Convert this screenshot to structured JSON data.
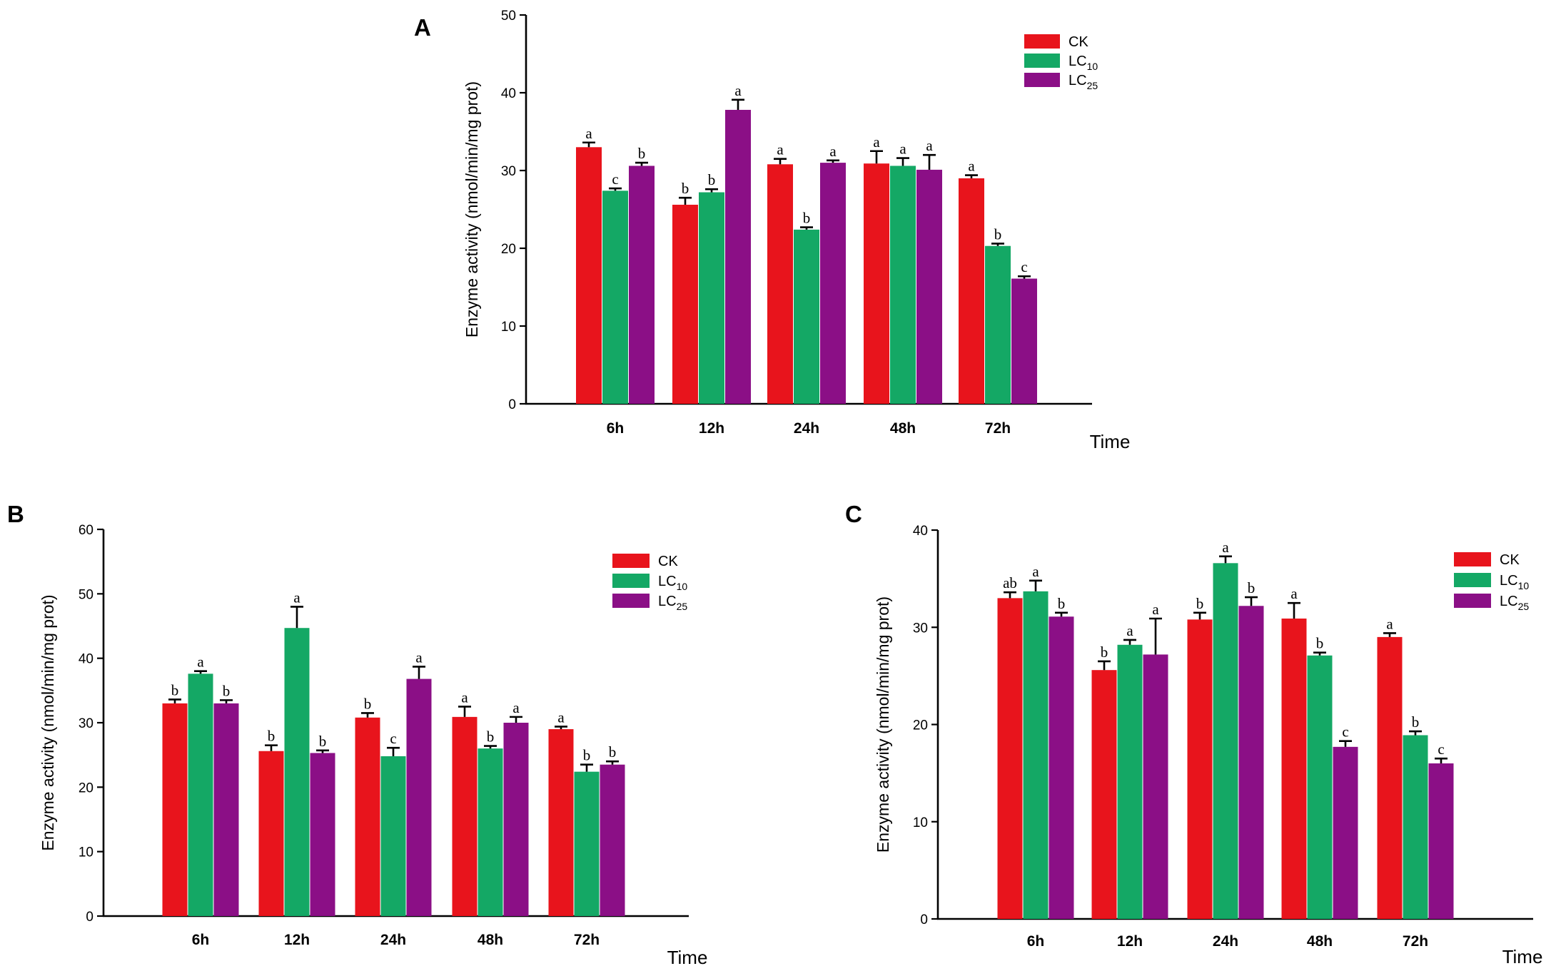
{
  "chart_data": [
    {
      "panel": "A",
      "type": "bar",
      "categories": [
        "6h",
        "12h",
        "24h",
        "48h",
        "72h"
      ],
      "xlabel": "Time",
      "ylabel": "Enzyme activity (nmol/min/mg prot)",
      "ylim": [
        0,
        50
      ],
      "yticks": [
        0,
        10,
        20,
        30,
        40,
        50
      ],
      "legend_position": "top-right",
      "series": [
        {
          "name": "CK",
          "sub": "",
          "color": "#e8141c",
          "values": [
            33.0,
            25.6,
            30.8,
            30.9,
            29.0
          ],
          "errors": [
            0.6,
            0.9,
            0.7,
            1.6,
            0.4
          ],
          "letters": [
            "a",
            "b",
            "a",
            "a",
            "a"
          ]
        },
        {
          "name": "LC",
          "sub": "10",
          "color": "#14a865",
          "values": [
            27.4,
            27.2,
            22.4,
            30.6,
            20.3
          ],
          "errors": [
            0.3,
            0.4,
            0.3,
            1.0,
            0.3
          ],
          "letters": [
            "c",
            "b",
            "b",
            "a",
            "b"
          ]
        },
        {
          "name": "LC",
          "sub": "25",
          "color": "#8b0f86",
          "values": [
            30.6,
            37.8,
            31.0,
            30.1,
            16.1
          ],
          "errors": [
            0.4,
            1.3,
            0.3,
            1.9,
            0.3
          ],
          "letters": [
            "b",
            "a",
            "a",
            "a",
            "c"
          ]
        }
      ]
    },
    {
      "panel": "B",
      "type": "bar",
      "categories": [
        "6h",
        "12h",
        "24h",
        "48h",
        "72h"
      ],
      "xlabel": "Time",
      "ylabel": "Enzyme activity (nmol/min/mg prot)",
      "ylim": [
        0,
        60
      ],
      "yticks": [
        0,
        10,
        20,
        30,
        40,
        50,
        60
      ],
      "legend_position": "top-right",
      "series": [
        {
          "name": "CK",
          "sub": "",
          "color": "#e8141c",
          "values": [
            33.0,
            25.6,
            30.8,
            30.9,
            29.0
          ],
          "errors": [
            0.6,
            0.9,
            0.7,
            1.6,
            0.4
          ],
          "letters": [
            "b",
            "b",
            "b",
            "a",
            "a"
          ]
        },
        {
          "name": "LC",
          "sub": "10",
          "color": "#14a865",
          "values": [
            37.6,
            44.7,
            24.8,
            26.0,
            22.4
          ],
          "errors": [
            0.4,
            3.3,
            1.3,
            0.4,
            1.1
          ],
          "letters": [
            "a",
            "a",
            "c",
            "b",
            "b"
          ]
        },
        {
          "name": "LC",
          "sub": "25",
          "color": "#8b0f86",
          "values": [
            33.0,
            25.3,
            36.8,
            30.0,
            23.5
          ],
          "errors": [
            0.5,
            0.4,
            1.9,
            0.9,
            0.5
          ],
          "letters": [
            "b",
            "b",
            "a",
            "a",
            "b"
          ]
        }
      ]
    },
    {
      "panel": "C",
      "type": "bar",
      "categories": [
        "6h",
        "12h",
        "24h",
        "48h",
        "72h"
      ],
      "xlabel": "Time",
      "ylabel": "Enzyme activity (nmol/min/mg prot)",
      "ylim": [
        0,
        40
      ],
      "yticks": [
        0,
        10,
        20,
        30,
        40
      ],
      "legend_position": "top-right",
      "series": [
        {
          "name": "CK",
          "sub": "",
          "color": "#e8141c",
          "values": [
            33.0,
            25.6,
            30.8,
            30.9,
            29.0
          ],
          "errors": [
            0.6,
            0.9,
            0.7,
            1.6,
            0.4
          ],
          "letters": [
            "ab",
            "b",
            "b",
            "a",
            "a"
          ]
        },
        {
          "name": "LC",
          "sub": "10",
          "color": "#14a865",
          "values": [
            33.7,
            28.2,
            36.6,
            27.1,
            18.9
          ],
          "errors": [
            1.1,
            0.5,
            0.7,
            0.3,
            0.4
          ],
          "letters": [
            "a",
            "a",
            "a",
            "b",
            "b"
          ]
        },
        {
          "name": "LC",
          "sub": "25",
          "color": "#8b0f86",
          "values": [
            31.1,
            27.2,
            32.2,
            17.7,
            16.0
          ],
          "errors": [
            0.4,
            3.7,
            0.9,
            0.6,
            0.5
          ],
          "letters": [
            "b",
            "a",
            "b",
            "c",
            "c"
          ]
        }
      ]
    }
  ]
}
